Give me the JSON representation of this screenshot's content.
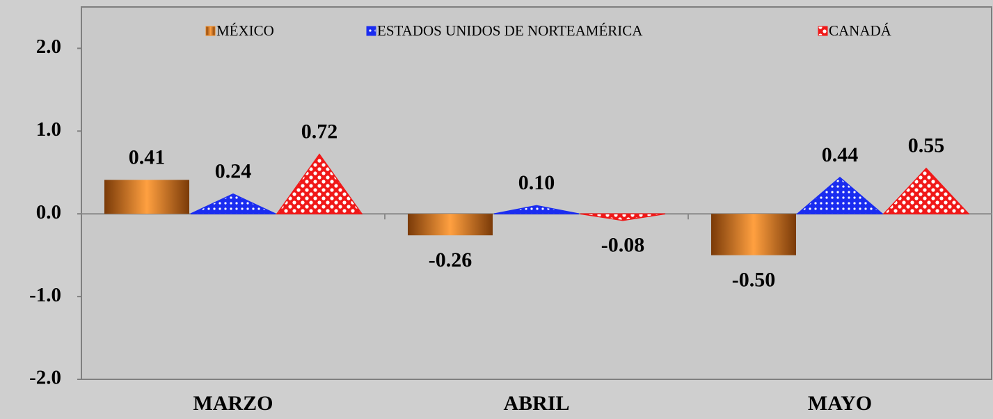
{
  "chart_data": {
    "type": "bar",
    "categories": [
      "MARZO",
      "ABRIL",
      "MAYO"
    ],
    "series": [
      {
        "name": "MÉXICO",
        "color": "#f08a24",
        "marker": "bar",
        "values": [
          0.41,
          -0.26,
          -0.5
        ],
        "value_labels": [
          "0.41",
          "-0.26",
          "-0.50"
        ]
      },
      {
        "name": "ESTADOS UNIDOS DE NORTEAMÉRICA",
        "color": "#1a2cf0",
        "marker": "triangle",
        "values": [
          0.24,
          0.1,
          0.44
        ],
        "value_labels": [
          "0.24",
          "0.10",
          "0.44"
        ]
      },
      {
        "name": "CANADÁ",
        "color": "#f01818",
        "marker": "triangle",
        "values": [
          0.72,
          -0.08,
          0.55
        ],
        "value_labels": [
          "0.72",
          "-0.08",
          "0.55"
        ]
      }
    ],
    "ylim": [
      -2,
      2.5
    ],
    "yticks": [
      {
        "value": -2,
        "label": "-2.0"
      },
      {
        "value": -1,
        "label": "-1.0"
      },
      {
        "value": 0,
        "label": "0.0"
      },
      {
        "value": 1,
        "label": "1.0"
      },
      {
        "value": 2,
        "label": "2.0"
      }
    ],
    "legend": "top"
  }
}
